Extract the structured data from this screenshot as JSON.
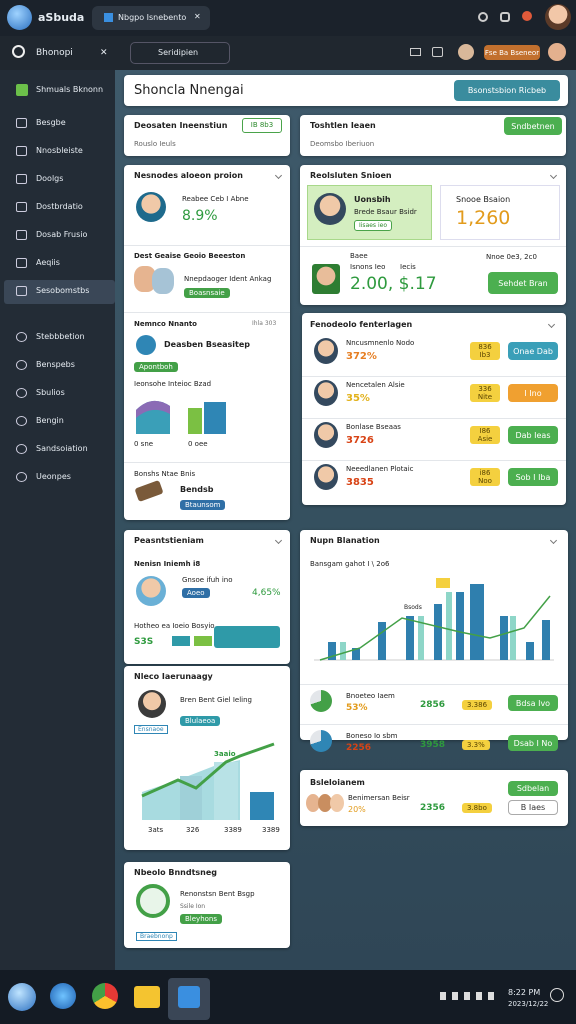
{
  "browser": {
    "app": "aSbuda",
    "tab": "Nbgpo Isnebento",
    "close": "✕"
  },
  "address": {
    "left": "Bhonopi",
    "close": "✕",
    "search": "Seridipien",
    "button": "Fse Ba Bseneor"
  },
  "sidebar": {
    "brand": "Shmuals Bknonn",
    "items": [
      "Besgbe",
      "Nnosbleiste",
      "Doolgs",
      "Dostbrdatio",
      "Dosab Frusio",
      "Aeqiis",
      "Sesobomstbs"
    ],
    "items2": [
      "Stebbbetion",
      "Benspebs",
      "Sbulios",
      "Bengin",
      "Sandsoiation",
      "Ueonpes"
    ]
  },
  "header": {
    "title": "Shoncla Nnengai",
    "button": "Bsonstsbion Ricbeb"
  },
  "top_left": {
    "title": "Deosaten Ineenstiun",
    "badge": "IB 8b3",
    "sub": "Rouslo Ieuls"
  },
  "top_right": {
    "title": "Toshtlen Ieaen",
    "button": "Sndbetnen",
    "sub": "Deomsbo Iberiuon"
  },
  "left_panel": {
    "title": "Nesnodes aloeon proion",
    "profile": {
      "name": "Reabee Ceb I Abne",
      "value": "8.9%"
    },
    "group": {
      "title": "Dest Geaise Geoio Beeeston",
      "name": "Nnepdaoger Ident Ankag",
      "badge": "Boasnsaie"
    },
    "stats": {
      "title": "Nemnco Nnanto",
      "meta": "Ihla 303",
      "name": "Deasben Bseasitep",
      "badge": "Apontboh",
      "chart_title": "Ieonsohe Inteioc Bzad",
      "label1": "0 sne",
      "label2": "0 oee"
    },
    "footer": {
      "title": "Bonshs Ntae Bnis",
      "name": "Bendsb",
      "badge": "Btaunsom"
    }
  },
  "summary": {
    "title": "Reolsluten Snioen",
    "highlight": {
      "name": "Uonsbih",
      "sub": "Brede Bsaur Bsidr",
      "badge": "Iisaes ieo"
    },
    "score": {
      "label": "Snooe Bsaion",
      "value": "1,260"
    },
    "balance": {
      "label": "Baee",
      "sub1": "Isnons Ieo",
      "sub2": "Iecis",
      "value": "2.00, $.17",
      "meta": "Nnoe 0e3, 2c0",
      "button": "Sehdet Bran"
    }
  },
  "list_panel": {
    "title": "Fenodeolo fenterlagen",
    "rows": [
      {
        "name": "Nncusmnenlo Nodo",
        "value": "372%",
        "badge": "836 Ib3",
        "button": "Onae Dab"
      },
      {
        "name": "Nencetalen Alsie",
        "value": "35%",
        "badge": "336 Nite",
        "button": "I Ino"
      },
      {
        "name": "Bonlase Bseaas",
        "value": "3726",
        "badge": "I86 Asie",
        "button": "Dab Ieas"
      },
      {
        "name": "Neeedlanen Plotaic",
        "value": "3835",
        "badge": "i86 Noo",
        "button": "Sob I Iba"
      }
    ]
  },
  "people_panel": {
    "title": "Peasntstieniam",
    "subtitle": "Nenisn Iniemh i8",
    "name": "Gnsoe ifuh ino",
    "badge": "Aoeo",
    "value": "4,65%",
    "progress_title": "Hotheo ea Ioeio Bosyio",
    "progress_value": "S3S"
  },
  "growth_panel": {
    "title": "Nleco Iaerunaagy",
    "name": "Bren Bent Giel Ieling",
    "badge": "Blulaeoa",
    "sub": "Ensnaoe",
    "peak": "3aaio",
    "xlabels": [
      "3ats",
      "326",
      "3389",
      "3389"
    ]
  },
  "time_panel": {
    "title": "Nbeolo Bnndtsneg",
    "name": "Renonstsn Bent Bsgp",
    "sub": "Ssile Ion",
    "badge": "Bleyhons",
    "badge2": "Braebnonp"
  },
  "trend_panel": {
    "title": "Nupn Blanation",
    "subtitle": "Bansgam gahot I \\ 2o6",
    "peak": "Bsods",
    "rows": [
      {
        "name": "Bnoeteo Iaem",
        "value": "53%",
        "value2": "2856",
        "badge": "3.386",
        "button": "Bdsa Ivo"
      },
      {
        "name": "Boneso Io sbm",
        "value": "2256",
        "value2": "3958",
        "badge": "3.3%",
        "button": "Dsab I No"
      }
    ]
  },
  "team_panel": {
    "title": "Bsleloianem",
    "name": "Benimersan Beisr",
    "value": "20%",
    "value2": "2356",
    "badge": "3.8bo",
    "button": "Sdbelan",
    "button2": "B Iaes"
  },
  "taskbar": {
    "time": "8:22 PM",
    "date": "2023/12/22"
  }
}
